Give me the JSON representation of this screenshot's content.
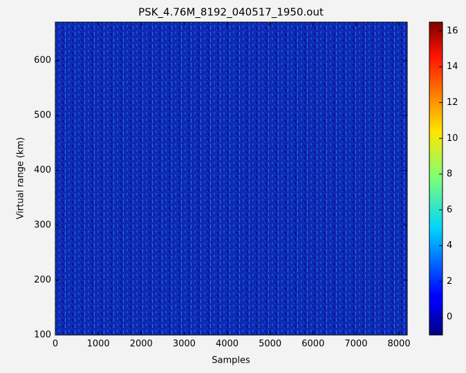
{
  "chart_data": {
    "type": "heatmap",
    "title": "PSK_4.76M_8192_040517_1950.out",
    "x_label": "Samples",
    "y_label": "Virtual range (km)",
    "xlim": [
      0,
      8192
    ],
    "xticks": [
      0,
      1000,
      2000,
      3000,
      4000,
      5000,
      6000,
      7000,
      8000
    ],
    "ylim": [
      100,
      670
    ],
    "yticks": [
      100,
      200,
      300,
      400,
      500,
      600
    ],
    "colormap": "jet",
    "clim": [
      -1,
      16.5
    ],
    "cticks": [
      0,
      2,
      4,
      6,
      8,
      10,
      12,
      14,
      16
    ]
  }
}
